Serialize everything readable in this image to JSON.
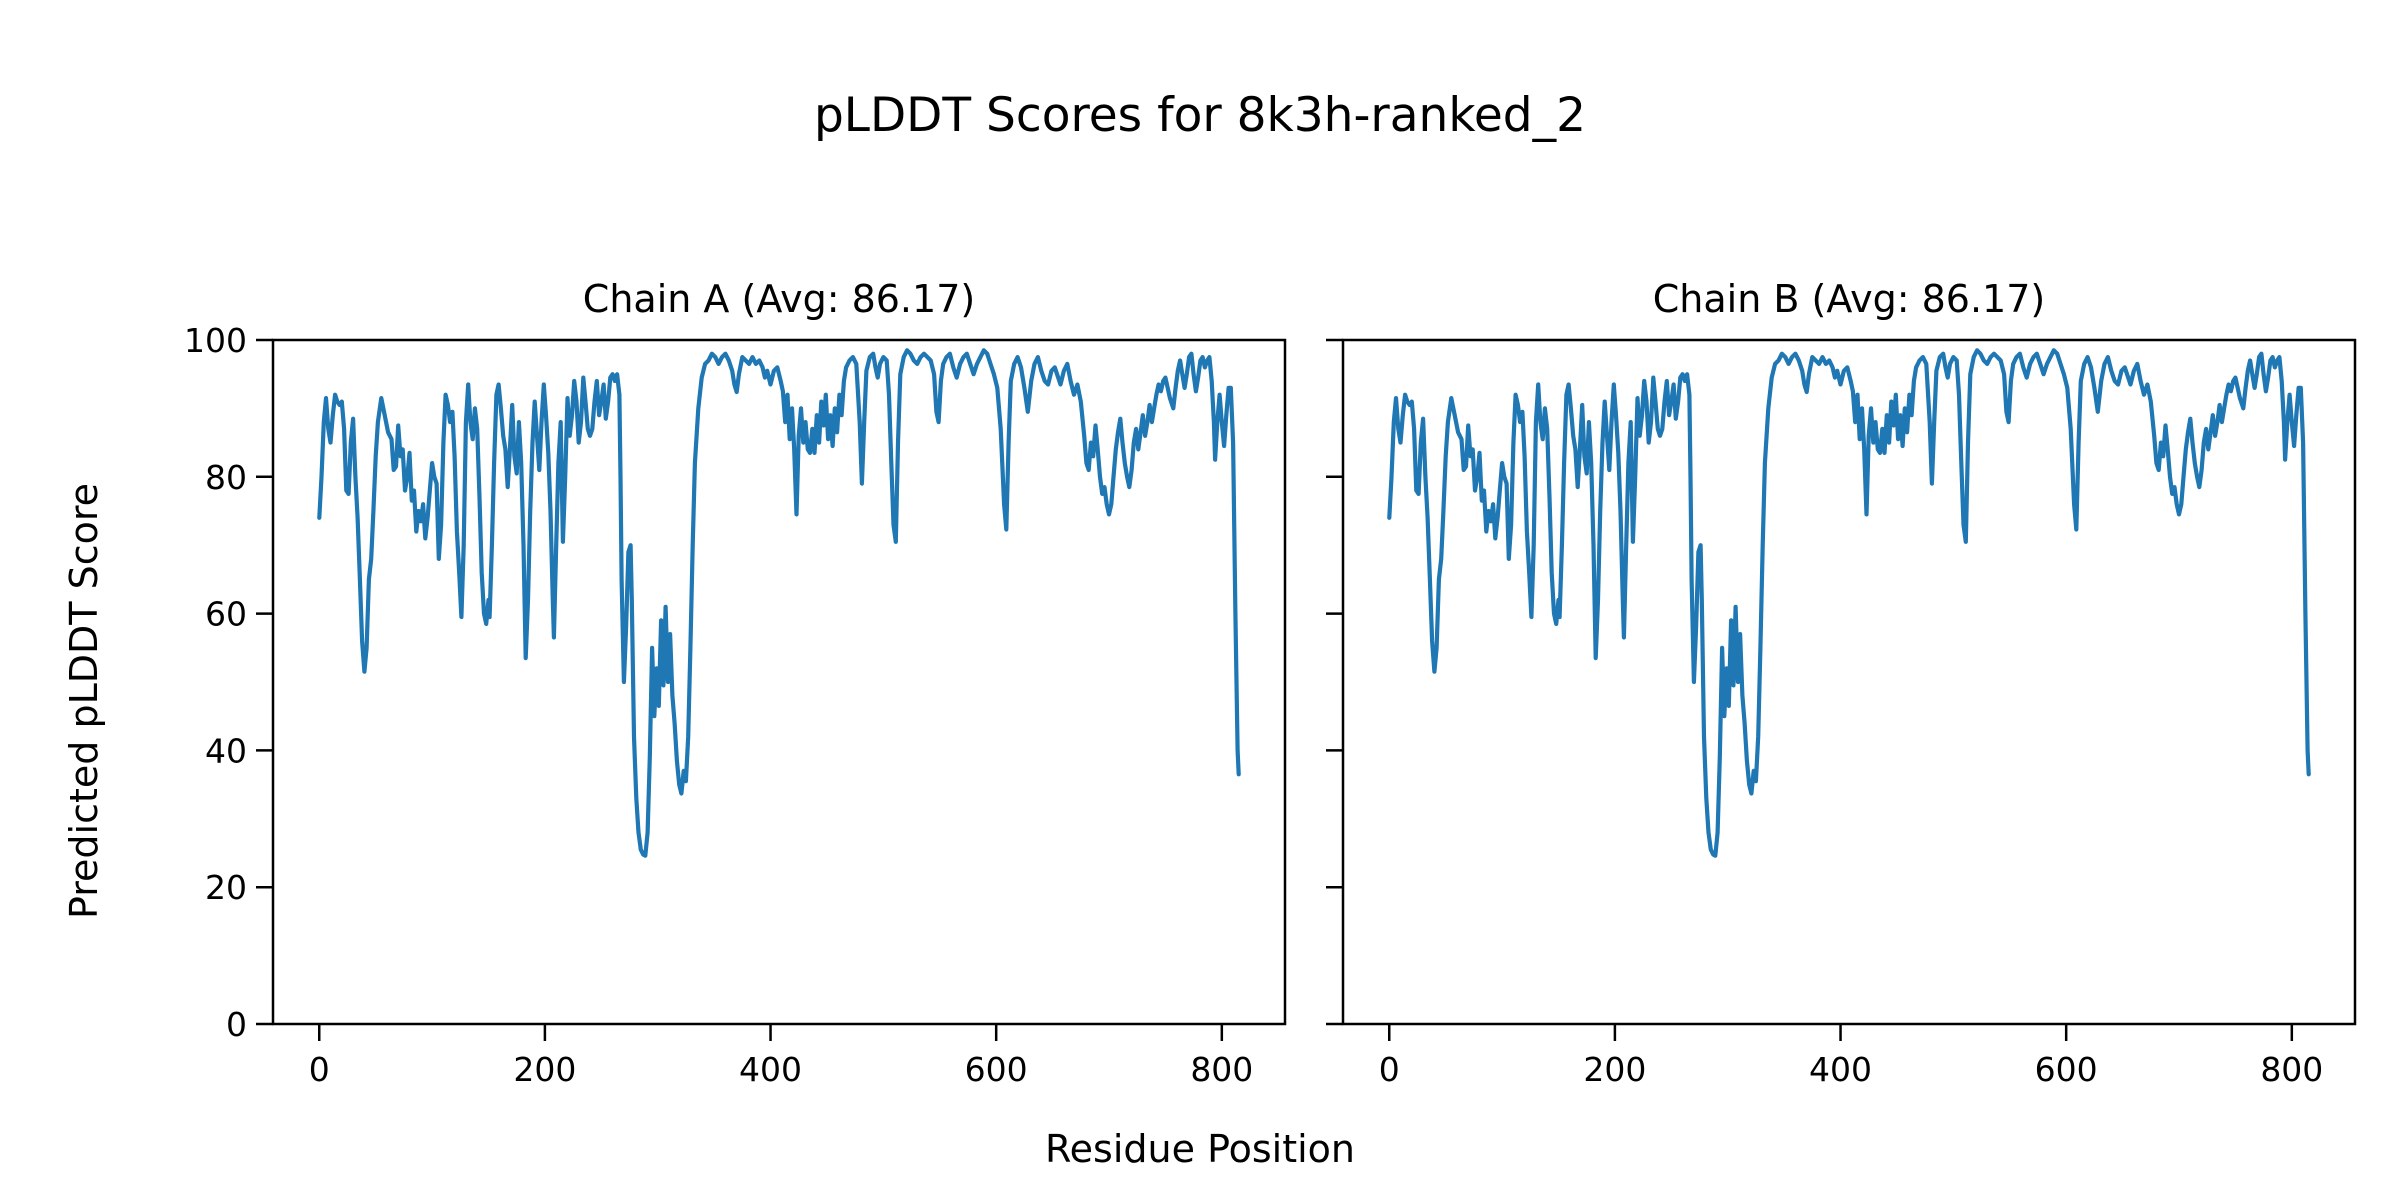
{
  "figure": {
    "suptitle": "pLDDT Scores for 8k3h-ranked_2",
    "xlabel": "Residue Position",
    "ylabel": "Predicted pLDDT Score",
    "background_color": "#ffffff",
    "text_color": "#000000"
  },
  "chart_data": {
    "type": "line",
    "title": "pLDDT Scores for 8k3h-ranked_2",
    "xlabel": "Residue Position",
    "ylabel": "Predicted pLDDT Score",
    "line_color": "#1f77b4",
    "spine_color": "#000000",
    "grid": false,
    "legend": false,
    "xticks": [
      0,
      200,
      400,
      600,
      800
    ],
    "yticks": [
      0,
      20,
      40,
      60,
      80,
      100
    ],
    "xlim": [
      -41,
      856
    ],
    "ylim": [
      0,
      100
    ],
    "subplots": [
      {
        "chain": "A",
        "title": "Chain A (Avg: 86.17)",
        "avg": 86.17
      },
      {
        "chain": "B",
        "title": "Chain B (Avg: 86.17)",
        "avg": 86.17
      }
    ],
    "note": "Both chains plot the same pLDDT-vs-residue series (values estimated from pixels)",
    "x": [
      0,
      2,
      4,
      6,
      8,
      10,
      12,
      14,
      16,
      18,
      20,
      22,
      24,
      26,
      28,
      30,
      32,
      34,
      36,
      38,
      40,
      42,
      44,
      46,
      48,
      50,
      52,
      55,
      58,
      61,
      64,
      66,
      68,
      70,
      72,
      74,
      76,
      78,
      80,
      82,
      84,
      86,
      88,
      90,
      92,
      94,
      96,
      98,
      100,
      102,
      104,
      106,
      108,
      110,
      112,
      114,
      116,
      118,
      120,
      122,
      124,
      126,
      128,
      130,
      132,
      134,
      136,
      138,
      140,
      142,
      144,
      146,
      148,
      150,
      151,
      153,
      155,
      157,
      159,
      161,
      163,
      165,
      167,
      169,
      171,
      173,
      175,
      177,
      179,
      181,
      183,
      185,
      187,
      189,
      191,
      193,
      195,
      197,
      199,
      201,
      203,
      205,
      207,
      208,
      210,
      212,
      214,
      216,
      218,
      220,
      222,
      224,
      226,
      228,
      230,
      232,
      234,
      236,
      238,
      240,
      242,
      244,
      246,
      248,
      250,
      252,
      254,
      256,
      258,
      260,
      262,
      264,
      266,
      267,
      268,
      270,
      272,
      274,
      276,
      277,
      279,
      281,
      283,
      285,
      287,
      289,
      291,
      293,
      295,
      297,
      299,
      301,
      303,
      305,
      307,
      309,
      311,
      313,
      315,
      317,
      319,
      321,
      323,
      325,
      327,
      329,
      331,
      333,
      336,
      339,
      342,
      345,
      348,
      351,
      354,
      357,
      360,
      363,
      366,
      368,
      370,
      372,
      375,
      378,
      381,
      384,
      387,
      390,
      393,
      395,
      397,
      400,
      403,
      406,
      409,
      411,
      413,
      415,
      417,
      419,
      421,
      423,
      425,
      427,
      429,
      431,
      433,
      435,
      437,
      439,
      441,
      443,
      445,
      447,
      449,
      451,
      453,
      455,
      457,
      459,
      461,
      463,
      465,
      467,
      470,
      473,
      476,
      479,
      481,
      483,
      485,
      488,
      491,
      493,
      495,
      497,
      500,
      503,
      505,
      507,
      509,
      511,
      513,
      515,
      518,
      521,
      524,
      527,
      530,
      533,
      536,
      539,
      542,
      545,
      547,
      549,
      551,
      553,
      556,
      559,
      562,
      565,
      568,
      571,
      574,
      577,
      580,
      583,
      586,
      589,
      592,
      595,
      598,
      601,
      604,
      607,
      609,
      611,
      613,
      616,
      619,
      622,
      625,
      628,
      631,
      634,
      637,
      640,
      643,
      646,
      649,
      652,
      655,
      657,
      660,
      663,
      666,
      669,
      672,
      675,
      678,
      680,
      682,
      684,
      686,
      688,
      690,
      692,
      694,
      696,
      698,
      700,
      702,
      704,
      706,
      708,
      710,
      712,
      714,
      716,
      718,
      720,
      722,
      724,
      726,
      728,
      730,
      732,
      734,
      736,
      738,
      740,
      742,
      744,
      746,
      748,
      750,
      752,
      754,
      756,
      757,
      759,
      761,
      763,
      765,
      767,
      769,
      771,
      773,
      775,
      777,
      779,
      781,
      783,
      785,
      787,
      789,
      791,
      793,
      794,
      796,
      798,
      800,
      802,
      804,
      806,
      808,
      810,
      812,
      814,
      815
    ],
    "y": [
      74,
      80,
      88,
      91.5,
      87,
      85,
      89,
      92,
      91,
      90.5,
      91,
      87,
      78,
      77.5,
      85,
      88.5,
      80,
      74,
      65,
      56,
      51.5,
      55,
      65,
      68,
      75,
      83,
      88,
      91.5,
      89,
      86.5,
      85.5,
      81,
      81.5,
      87.5,
      83,
      84,
      78,
      80,
      83.5,
      76.5,
      78,
      72,
      75,
      73.5,
      76,
      71,
      74,
      78,
      82,
      80,
      79,
      68,
      73,
      85,
      92,
      90.5,
      88,
      89.5,
      83,
      72,
      66,
      59.5,
      70,
      88,
      93.5,
      88,
      85.5,
      90,
      87,
      77,
      66,
      60,
      58.5,
      62,
      59.5,
      70,
      82,
      92,
      93.5,
      90,
      86,
      84,
      78.5,
      84,
      90.5,
      83,
      80.5,
      88,
      82,
      70,
      53.5,
      62,
      75,
      85,
      91,
      86,
      81,
      88,
      93.5,
      89,
      83.5,
      75,
      62,
      56.5,
      70,
      82,
      88,
      70.5,
      80,
      91.5,
      86,
      89,
      94,
      91,
      85,
      88,
      94.5,
      91,
      87,
      86,
      87,
      91,
      94,
      89,
      91,
      93.5,
      88.5,
      91,
      94.5,
      95,
      94,
      95,
      92,
      80,
      65,
      50,
      58,
      69,
      70,
      62,
      42,
      33,
      28,
      25.5,
      24.8,
      24.6,
      28,
      39,
      55,
      45,
      52,
      46.5,
      59,
      49.5,
      61,
      50,
      57,
      48,
      44,
      38.5,
      35,
      33.7,
      37,
      35.5,
      42,
      55,
      70,
      82,
      90,
      94.5,
      96.5,
      97,
      98,
      97.5,
      96.5,
      97.5,
      98,
      97,
      95.5,
      93.5,
      92.4,
      95,
      97.5,
      97,
      96.5,
      97.5,
      96.5,
      97,
      96,
      94.5,
      95.5,
      93.5,
      95.5,
      96,
      94,
      92.5,
      88,
      92,
      85.5,
      90,
      84,
      74.5,
      86,
      90,
      85,
      88,
      84,
      83.5,
      87,
      83.5,
      89,
      85,
      91,
      87.5,
      92,
      85.5,
      89,
      84.5,
      90,
      86.5,
      92,
      89,
      94,
      96,
      97,
      97.5,
      96.5,
      88,
      79,
      88,
      95.5,
      97.5,
      98,
      96,
      94.5,
      96.5,
      97.5,
      97,
      92,
      82,
      73,
      70.5,
      85,
      95,
      97.5,
      98.5,
      98,
      97,
      96.5,
      97.5,
      98,
      97.5,
      97,
      95,
      89.5,
      88,
      94,
      96.5,
      97.5,
      98,
      96,
      94.5,
      96.5,
      97.5,
      98,
      96.5,
      95,
      96.5,
      97.5,
      98.5,
      98,
      96.5,
      95,
      93,
      87,
      76,
      72.3,
      85,
      94,
      96.5,
      97.5,
      96,
      93,
      89.5,
      94,
      96.5,
      97.5,
      95.5,
      94,
      93.5,
      95.5,
      96,
      94.5,
      93.5,
      95.5,
      96.5,
      94,
      92,
      93.5,
      91,
      86,
      82,
      81,
      85,
      83,
      87.5,
      84,
      80,
      77.5,
      78.5,
      76,
      74.5,
      76,
      80,
      84,
      86.5,
      88.5,
      85,
      82,
      80,
      78.5,
      81,
      85,
      87,
      84,
      86.5,
      89,
      86,
      88,
      90.5,
      88,
      90,
      92,
      93.5,
      92.5,
      94,
      94.5,
      93,
      91.5,
      90.5,
      90,
      93,
      95.5,
      97,
      95,
      93,
      95,
      97.5,
      98,
      95,
      92.5,
      94.5,
      97,
      97.5,
      96,
      97,
      97.5,
      94,
      88,
      82.5,
      88,
      92,
      88,
      84.5,
      89,
      93,
      93,
      85,
      60,
      40,
      36.5
    ]
  }
}
